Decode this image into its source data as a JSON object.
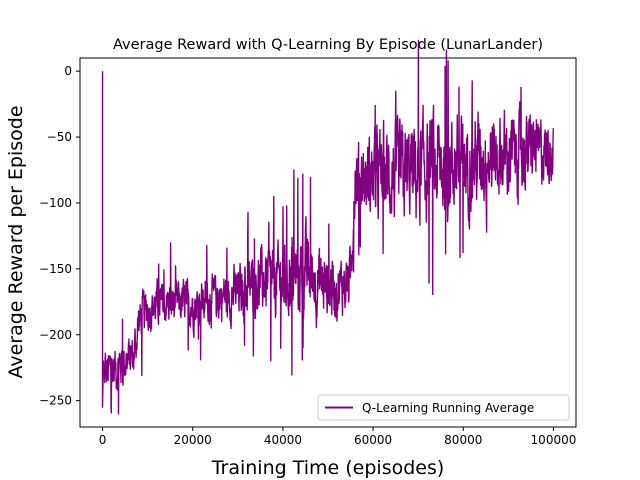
{
  "chart_data": {
    "type": "line",
    "title": "Average Reward with Q-Learning By Episode (LunarLander)",
    "xlabel": "Training Time (episodes)",
    "ylabel": "Average Reward per Episode",
    "xlim": [
      -5000,
      105000
    ],
    "ylim": [
      -270,
      10
    ],
    "xticks": [
      0,
      20000,
      40000,
      60000,
      80000,
      100000
    ],
    "xtick_labels": [
      "0",
      "20000",
      "40000",
      "60000",
      "80000",
      "100000"
    ],
    "yticks": [
      0,
      -50,
      -100,
      -150,
      -200,
      -250
    ],
    "ytick_labels": [
      "0",
      "−50",
      "−100",
      "−150",
      "−200",
      "−250"
    ],
    "grid": false,
    "legend": {
      "position": "lower-right"
    },
    "series": [
      {
        "name": "Q-Learning Running Average",
        "color": "#800080",
        "x": [
          0,
          100,
          300,
          600,
          1000,
          2000,
          3000,
          4000,
          5000,
          6000,
          7000,
          8000,
          10000,
          12000,
          15000,
          18000,
          20000,
          22000,
          25000,
          28000,
          30000,
          32000,
          35000,
          38000,
          40000,
          42000,
          45000,
          48000,
          50000,
          52000,
          54000,
          55000,
          56000,
          58000,
          60000,
          62000,
          65000,
          68000,
          70000,
          72000,
          75000,
          78000,
          80000,
          82000,
          85000,
          88000,
          90000,
          92000,
          95000,
          98000,
          100000
        ],
        "y": [
          0,
          -225,
          -235,
          -228,
          -230,
          -226,
          -225,
          -222,
          -220,
          -218,
          -215,
          -190,
          -180,
          -178,
          -175,
          -176,
          -178,
          -176,
          -172,
          -170,
          -168,
          -165,
          -160,
          -160,
          -158,
          -155,
          -152,
          -160,
          -162,
          -165,
          -160,
          -158,
          -80,
          -82,
          -80,
          -78,
          -80,
          -78,
          -75,
          -74,
          -72,
          -70,
          -70,
          -68,
          -65,
          -64,
          -64,
          -62,
          -60,
          -60,
          -60
        ],
        "band_half_width": [
          0,
          20,
          18,
          17,
          16,
          15,
          15,
          14,
          14,
          14,
          14,
          14,
          14,
          14,
          14,
          14,
          14,
          14,
          15,
          16,
          17,
          18,
          20,
          22,
          24,
          25,
          25,
          22,
          20,
          18,
          18,
          18,
          22,
          24,
          26,
          28,
          30,
          32,
          32,
          32,
          32,
          30,
          30,
          30,
          28,
          27,
          26,
          25,
          22,
          20,
          18
        ]
      }
    ]
  }
}
